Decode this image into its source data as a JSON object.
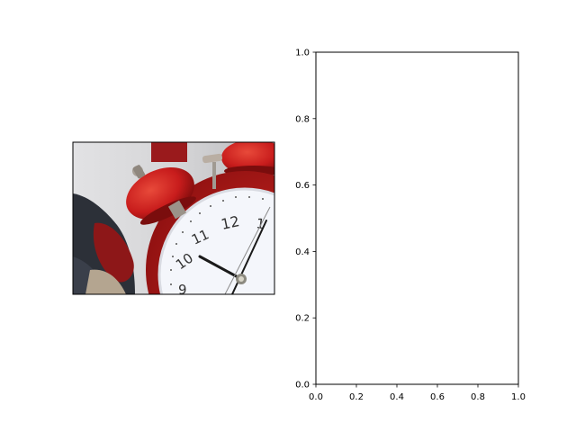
{
  "figure": {
    "background": "#ffffff",
    "image_panel": {
      "icon": "alarm-clock-photo",
      "clock_numerals": [
        "12",
        "1",
        "11",
        "10",
        "9"
      ],
      "colors": {
        "clock_red": "#c81c1c",
        "clock_dark_red": "#8a0f10",
        "dial_white": "#f4f6fb",
        "backdrop_grey": "#d8d8da"
      }
    }
  },
  "chart_data": {
    "type": "scatter",
    "title": "",
    "xlabel": "",
    "ylabel": "",
    "xlim": [
      0,
      1
    ],
    "ylim": [
      0,
      1
    ],
    "x_ticks": [
      0.0,
      0.2,
      0.4,
      0.6,
      0.8,
      1.0
    ],
    "y_ticks": [
      0.0,
      0.2,
      0.4,
      0.6,
      0.8,
      1.0
    ],
    "x_tick_labels": [
      "0.0",
      "0.2",
      "0.4",
      "0.6",
      "0.8",
      "1.0"
    ],
    "y_tick_labels": [
      "0.0",
      "0.2",
      "0.4",
      "0.6",
      "0.8",
      "1.0"
    ],
    "series": [],
    "grid": false,
    "legend": "none"
  }
}
